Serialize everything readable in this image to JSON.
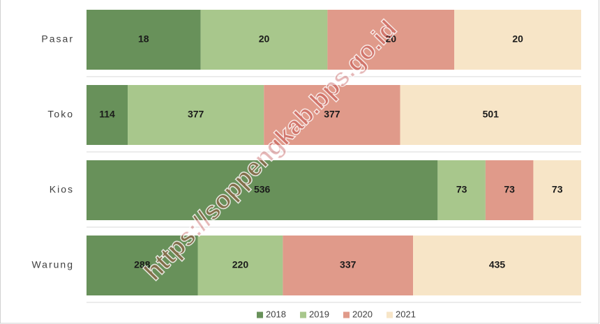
{
  "chart_data": {
    "type": "bar",
    "orientation": "horizontal",
    "stacked": "percent",
    "categories": [
      "Pasar",
      "Toko",
      "Kios",
      "Warung"
    ],
    "series": [
      {
        "name": "2018",
        "color": "#68915a",
        "values": [
          18,
          114,
          536,
          288
        ]
      },
      {
        "name": "2019",
        "color": "#a8c78c",
        "values": [
          20,
          377,
          73,
          220
        ]
      },
      {
        "name": "2020",
        "color": "#e09a8a",
        "values": [
          20,
          377,
          73,
          337
        ]
      },
      {
        "name": "2021",
        "color": "#f7e5c7",
        "values": [
          20,
          501,
          73,
          435
        ]
      }
    ],
    "legend": "bottom",
    "watermark": "https://soppengkab.bps.go.id"
  }
}
